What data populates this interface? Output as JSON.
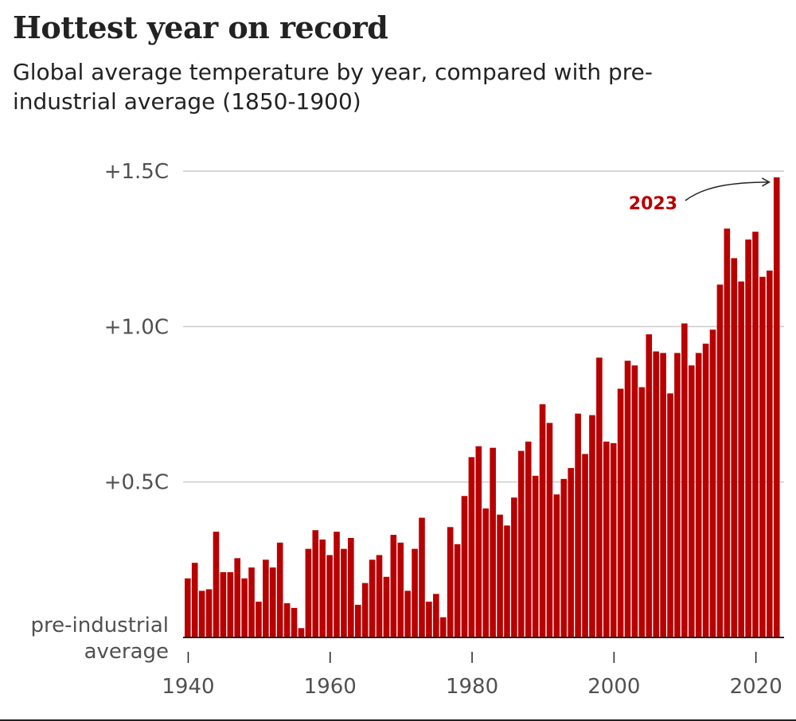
{
  "title": "Hottest year on record",
  "subtitle": "Global average temperature by year, compared with pre-industrial average (1850-1900)",
  "colors": {
    "bar": "#b80000",
    "grid": "#cccccc",
    "axis": "#222222",
    "text": "#505050",
    "annotation": "#b80000"
  },
  "chart_data": {
    "type": "bar",
    "title": "Hottest year on record",
    "subtitle": "Global average temperature by year, compared with pre-industrial average (1850-1900)",
    "x": [
      1940,
      1941,
      1942,
      1943,
      1944,
      1945,
      1946,
      1947,
      1948,
      1949,
      1950,
      1951,
      1952,
      1953,
      1954,
      1955,
      1956,
      1957,
      1958,
      1959,
      1960,
      1961,
      1962,
      1963,
      1964,
      1965,
      1966,
      1967,
      1968,
      1969,
      1970,
      1971,
      1972,
      1973,
      1974,
      1975,
      1976,
      1977,
      1978,
      1979,
      1980,
      1981,
      1982,
      1983,
      1984,
      1985,
      1986,
      1987,
      1988,
      1989,
      1990,
      1991,
      1992,
      1993,
      1994,
      1995,
      1996,
      1997,
      1998,
      1999,
      2000,
      2001,
      2002,
      2003,
      2004,
      2005,
      2006,
      2007,
      2008,
      2009,
      2010,
      2011,
      2012,
      2013,
      2014,
      2015,
      2016,
      2017,
      2018,
      2019,
      2020,
      2021,
      2022,
      2023
    ],
    "values": [
      0.19,
      0.24,
      0.15,
      0.155,
      0.34,
      0.21,
      0.21,
      0.255,
      0.19,
      0.225,
      0.115,
      0.25,
      0.225,
      0.305,
      0.11,
      0.095,
      0.03,
      0.285,
      0.345,
      0.315,
      0.265,
      0.34,
      0.285,
      0.32,
      0.105,
      0.175,
      0.25,
      0.265,
      0.195,
      0.33,
      0.305,
      0.15,
      0.285,
      0.385,
      0.115,
      0.14,
      0.065,
      0.355,
      0.3,
      0.455,
      0.58,
      0.615,
      0.415,
      0.61,
      0.395,
      0.36,
      0.45,
      0.6,
      0.63,
      0.52,
      0.75,
      0.69,
      0.46,
      0.51,
      0.545,
      0.72,
      0.59,
      0.715,
      0.9,
      0.63,
      0.625,
      0.8,
      0.89,
      0.875,
      0.805,
      0.975,
      0.92,
      0.915,
      0.785,
      0.915,
      1.01,
      0.875,
      0.915,
      0.945,
      0.99,
      1.135,
      1.315,
      1.22,
      1.145,
      1.28,
      1.305,
      1.16,
      1.18,
      1.48
    ],
    "xticks": [
      1940,
      1960,
      1980,
      2000,
      2020
    ],
    "xtick_labels": [
      "1940",
      "1960",
      "1980",
      "2000",
      "2020"
    ],
    "yticks": [
      0.5,
      1.0,
      1.5
    ],
    "ytick_labels": [
      "+0.5C",
      "+1.0C",
      "+1.5C"
    ],
    "baseline_label": [
      "pre-industrial",
      "average"
    ],
    "ylim": [
      0,
      1.5
    ],
    "grid": true,
    "annotation": {
      "text": "2023",
      "year": 2023
    }
  }
}
